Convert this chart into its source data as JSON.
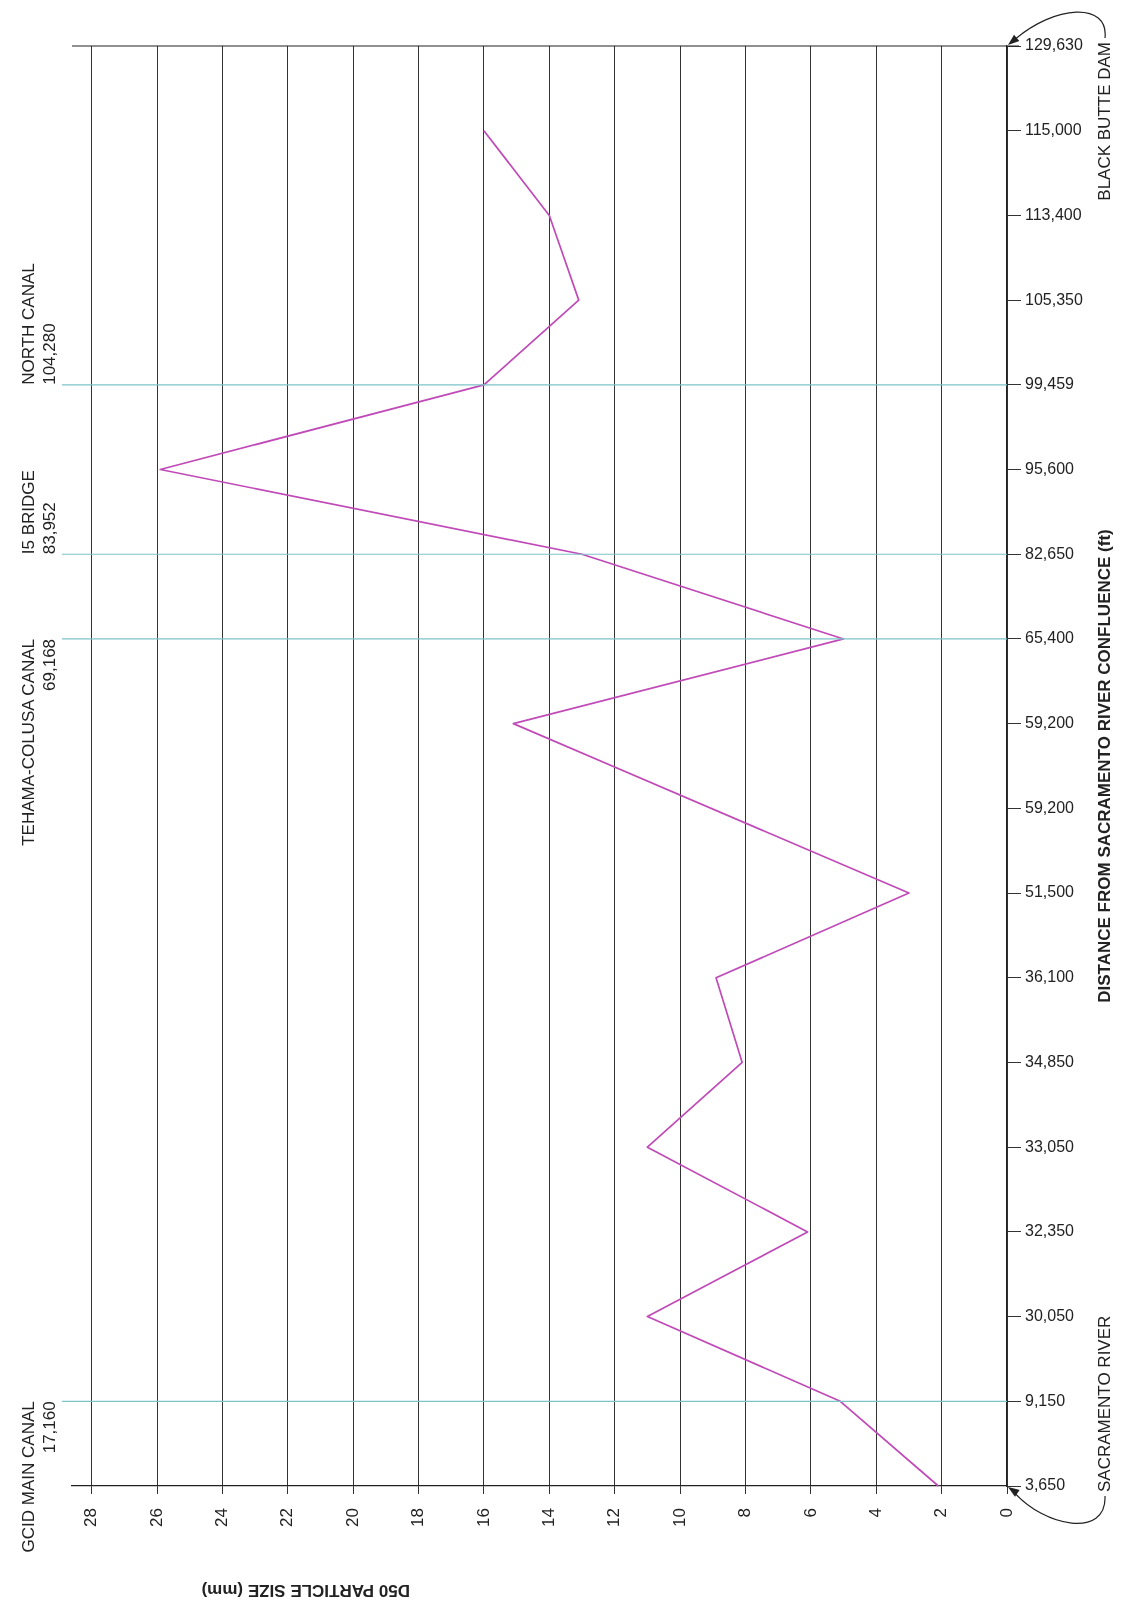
{
  "chart_data": {
    "type": "line",
    "orientation": "horizontal",
    "ylabel": "DISTANCE FROM SACRAMENTO RIVER CONFLUENCE (ft)",
    "xlabel": "D50 PARTICLE SIZE (mm)",
    "categories": [
      "129,630",
      "115,000",
      "113,400",
      "105,350",
      "99,459",
      "95,600",
      "82,650",
      "65,400",
      "59,200",
      "59,200",
      "51,500",
      "36,100",
      "34,850",
      "33,050",
      "32,350",
      "30,050",
      "9,150",
      "3,650"
    ],
    "series": [
      {
        "color": "#c04ab8",
        "values": [
          null,
          16.0,
          14.0,
          13.1,
          16.0,
          25.9,
          13.0,
          5.0,
          15.1,
          null,
          3.0,
          8.9,
          8.1,
          11.0,
          6.1,
          11.0,
          5.1,
          2.1
        ]
      }
    ],
    "xlim": [
      28.6,
      0
    ],
    "xticks": [
      0,
      2,
      4,
      6,
      8,
      10,
      12,
      14,
      16,
      18,
      20,
      22,
      24,
      26,
      28
    ],
    "grid": "x",
    "legend": false,
    "marker": "none",
    "line_style": "solid",
    "ref_lines": [
      {
        "axis": "y",
        "value": "9,150",
        "label": "GCID MAIN CANAL\n17,160",
        "color": "#7cc4c8"
      },
      {
        "axis": "y",
        "value": "65,400",
        "label": "TEHAMA-COLUSA CANAL\n69,168",
        "color": "#7cc4c8"
      },
      {
        "axis": "y",
        "value": "82,650",
        "label": "I5 BRIDGE\n83,952",
        "color": "#7cc4c8"
      },
      {
        "axis": "y",
        "value": "99,459",
        "label": "NORTH CANAL\n104,280",
        "color": "#7cc4c8"
      }
    ],
    "annotations": [
      "SACRAMENTO RIVER",
      "BLACK BUTTE DAM"
    ]
  }
}
